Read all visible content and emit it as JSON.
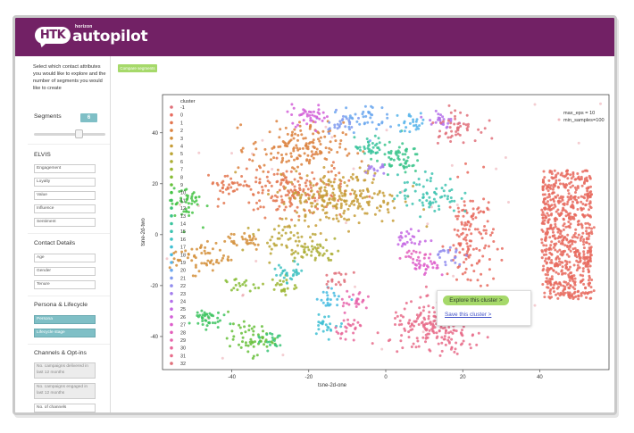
{
  "app": {
    "logo_badge": "HTK",
    "logo_sub": "horizon",
    "logo_main": "autopilot",
    "brand_color": "#722165",
    "accent_teal": "#7fbfc6",
    "accent_green": "#a6d96a"
  },
  "sidebar": {
    "intro": "Select which contact attributes you would like to explore and the number of segments you would like to create",
    "segments_label": "Segments",
    "segments_value": "6",
    "segments_slider_fraction": 0.6,
    "elvis_heading": "ELVIS",
    "elvis_items": [
      "Engagement",
      "Loyalty",
      "Value",
      "Influence",
      "Sentiment"
    ],
    "contact_heading": "Contact Details",
    "contact_items": [
      "Age",
      "Gender",
      "Tenure"
    ],
    "persona_heading": "Persona & Lifecycle",
    "persona_items": [
      "Persona",
      "Lifecycle stage"
    ],
    "channels_heading": "Channels & Opt-ins",
    "channels_items": [
      "No. campaigns delivered in last 12 months",
      "No. campaigns engaged in last 12 months",
      "No. of channels"
    ]
  },
  "main": {
    "compare_button": "Compare segments"
  },
  "tooltip": {
    "explore_button": "Explore this cluster >",
    "save_link": "Save this cluster >"
  },
  "chart_data": {
    "type": "scatter",
    "title": "",
    "xlabel": "tsne-2d-one",
    "ylabel": "tsne-2d-two",
    "xlim": [
      -58,
      58
    ],
    "ylim": [
      -53,
      55
    ],
    "xticks": [
      -40,
      -20,
      0,
      20,
      40
    ],
    "yticks": [
      40,
      20,
      0,
      -20,
      -40
    ],
    "grid": false,
    "legend": {
      "title": "cluster",
      "placement": "top-left",
      "entries": [
        "-1",
        "0",
        "1",
        "2",
        "3",
        "4",
        "5",
        "6",
        "7",
        "8",
        "9",
        "10",
        "11",
        "12",
        "13",
        "14",
        "15",
        "16",
        "17",
        "18",
        "19",
        "20",
        "21",
        "22",
        "23",
        "24",
        "25",
        "26",
        "27",
        "28",
        "29",
        "30",
        "31",
        "32"
      ]
    },
    "annotation": [
      "max_eps = 10",
      "min_samples=100"
    ],
    "palette": [
      "#e0707a",
      "#e86b5f",
      "#e3764f",
      "#dc8240",
      "#d38f3a",
      "#c79d38",
      "#bba536",
      "#acae35",
      "#9cb634",
      "#86bc34",
      "#66c03a",
      "#46c347",
      "#3cc35f",
      "#3bc477",
      "#3bc48b",
      "#3cc49e",
      "#3dc3b0",
      "#3fc2c2",
      "#40bfd3",
      "#45bbe0",
      "#55b3ea",
      "#6aa7ee",
      "#7f9aef",
      "#918cee",
      "#a37ded",
      "#b470ea",
      "#c466e3",
      "#d25fd8",
      "#dd5dca",
      "#e35fba",
      "#e663aa",
      "#e8679a",
      "#e86c8a"
    ],
    "clusters": [
      {
        "label": "-1",
        "x": 0,
        "y": 0,
        "sx": 45,
        "sy": 40,
        "n": 70
      },
      {
        "label": "0",
        "x": 47,
        "y": 0,
        "sx": 5,
        "sy": 22,
        "n": 700
      },
      {
        "label": "0",
        "x": 22,
        "y": -2,
        "sx": 3,
        "sy": 11,
        "n": 140
      },
      {
        "label": "0",
        "x": 53,
        "y": -7,
        "sx": 1,
        "sy": 6,
        "n": 12
      },
      {
        "label": "1",
        "x": -25,
        "y": 17,
        "sx": 7,
        "sy": 5,
        "n": 170
      },
      {
        "label": "1",
        "x": -40,
        "y": 20,
        "sx": 3,
        "sy": 2,
        "n": 30
      },
      {
        "label": "2",
        "x": -23,
        "y": 34,
        "sx": 6,
        "sy": 5,
        "n": 160
      },
      {
        "label": "3",
        "x": -48,
        "y": -9,
        "sx": 4,
        "sy": 3,
        "n": 60
      },
      {
        "label": "3",
        "x": -37,
        "y": -2,
        "sx": 3,
        "sy": 2,
        "n": 30
      },
      {
        "label": "4",
        "x": -12,
        "y": 14,
        "sx": 8,
        "sy": 5,
        "n": 220
      },
      {
        "label": "4",
        "x": -7,
        "y": 24,
        "sx": 2,
        "sy": 2,
        "n": 15
      },
      {
        "label": "5",
        "x": -26,
        "y": -2,
        "sx": 4,
        "sy": 3,
        "n": 50
      },
      {
        "label": "6",
        "x": -18,
        "y": -7,
        "sx": 3,
        "sy": 2,
        "n": 40
      },
      {
        "label": "7",
        "x": -27,
        "y": -20,
        "sx": 2,
        "sy": 2,
        "n": 22
      },
      {
        "label": "8",
        "x": -38,
        "y": -20,
        "sx": 2,
        "sy": 1.5,
        "n": 18
      },
      {
        "label": "9",
        "x": -35,
        "y": -41,
        "sx": 3,
        "sy": 3,
        "n": 55
      },
      {
        "label": "10",
        "x": -52,
        "y": 13,
        "sx": 2,
        "sy": 4,
        "n": 45
      },
      {
        "label": "11",
        "x": -47,
        "y": -33,
        "sx": 2,
        "sy": 2,
        "n": 40
      },
      {
        "label": "12",
        "x": -30,
        "y": -41,
        "sx": 2,
        "sy": 2,
        "n": 20
      },
      {
        "label": "13",
        "x": 3,
        "y": 30,
        "sx": 3,
        "sy": 3,
        "n": 60
      },
      {
        "label": "14",
        "x": -4,
        "y": 34,
        "sx": 2,
        "sy": 2,
        "n": 35
      },
      {
        "label": "15",
        "x": 11,
        "y": 16,
        "sx": 4,
        "sy": 4,
        "n": 70
      },
      {
        "label": "16",
        "x": -25,
        "y": -15,
        "sx": 2,
        "sy": 2,
        "n": 30
      },
      {
        "label": "17",
        "x": -15,
        "y": -35,
        "sx": 2,
        "sy": 2,
        "n": 25
      },
      {
        "label": "18",
        "x": -14,
        "y": -25,
        "sx": 2,
        "sy": 2,
        "n": 22
      },
      {
        "label": "19",
        "x": 7,
        "y": 44,
        "sx": 2,
        "sy": 2,
        "n": 25
      },
      {
        "label": "20",
        "x": -6,
        "y": 46,
        "sx": 3,
        "sy": 3,
        "n": 40
      },
      {
        "label": "21",
        "x": -12,
        "y": 44,
        "sx": 2,
        "sy": 2,
        "n": 25
      },
      {
        "label": "22",
        "x": 16,
        "y": -8,
        "sx": 2,
        "sy": 2,
        "n": 20
      },
      {
        "label": "23",
        "x": -3,
        "y": 26,
        "sx": 1.5,
        "sy": 1.5,
        "n": 15
      },
      {
        "label": "24",
        "x": 14,
        "y": 45,
        "sx": 2,
        "sy": 2,
        "n": 25
      },
      {
        "label": "25",
        "x": 7,
        "y": -2,
        "sx": 2,
        "sy": 2,
        "n": 25
      },
      {
        "label": "26",
        "x": -20,
        "y": 47,
        "sx": 3,
        "sy": 2,
        "n": 40
      },
      {
        "label": "27",
        "x": 10,
        "y": -13,
        "sx": 2,
        "sy": 2,
        "n": 30
      },
      {
        "label": "28",
        "x": 8,
        "y": -8,
        "sx": 1.5,
        "sy": 1.5,
        "n": 15
      },
      {
        "label": "29",
        "x": -8,
        "y": -26,
        "sx": 2,
        "sy": 2,
        "n": 25
      },
      {
        "label": "30",
        "x": -9,
        "y": -36,
        "sx": 2,
        "sy": 2,
        "n": 25
      },
      {
        "label": "31",
        "x": 13,
        "y": -37,
        "sx": 6,
        "sy": 5,
        "n": 200
      },
      {
        "label": "32",
        "x": 18,
        "y": 43,
        "sx": 3,
        "sy": 3,
        "n": 50
      },
      {
        "label": "32",
        "x": -13,
        "y": -18,
        "sx": 2,
        "sy": 1.5,
        "n": 18
      }
    ]
  }
}
